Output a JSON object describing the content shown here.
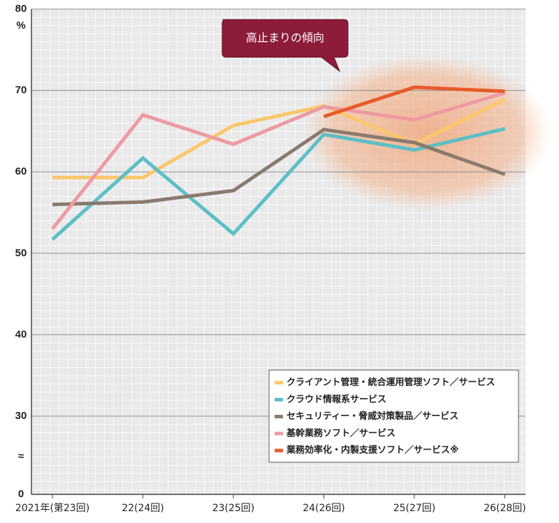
{
  "chart_data": {
    "type": "line",
    "ylabel": "%",
    "categories": [
      "2021年(第23回)",
      "22(24回)",
      "23(25回)",
      "24(26回)",
      "25(27回)",
      "26(28回)"
    ],
    "series": [
      {
        "name": "クライアント管理・統合運用管理ソフト／サービス",
        "color": "#fcc76a",
        "values": [
          59.3,
          59.3,
          65.7,
          68.1,
          63.4,
          68.9
        ]
      },
      {
        "name": "クラウド情報系サービス",
        "color": "#5bbfc7",
        "values": [
          51.7,
          61.7,
          52.4,
          64.6,
          62.7,
          65.3
        ]
      },
      {
        "name": "セキュリティー・脅威対策製品／サービス",
        "color": "#8a7a6e",
        "values": [
          56.0,
          56.3,
          57.7,
          65.2,
          63.6,
          59.7
        ]
      },
      {
        "name": "基幹業務ソフト／サービス",
        "color": "#ee9aa2",
        "values": [
          53.0,
          67.0,
          63.4,
          68.0,
          66.4,
          69.7
        ]
      },
      {
        "name": "業務効率化・内製支援ソフト／サービス※",
        "color": "#e85b2a",
        "values": [
          null,
          null,
          null,
          66.8,
          70.4,
          69.9
        ]
      }
    ],
    "ylim": [
      0,
      80
    ],
    "yticks": [
      0,
      30,
      40,
      50,
      60,
      70,
      80
    ],
    "y_break": {
      "from": 0,
      "to": 30,
      "label": "≈"
    },
    "annotation": "高止まりの傾向",
    "grid": true,
    "legend": "lower right"
  }
}
